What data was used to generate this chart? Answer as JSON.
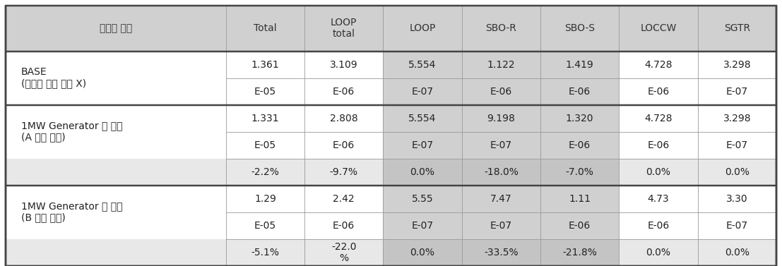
{
  "headers": [
    "이동형 설비",
    "Total",
    "LOOP\ntotal",
    "LOOP",
    "SBO-R",
    "SBO-S",
    "LOCCW",
    "SGTR"
  ],
  "col_widths_ratio": [
    2.8,
    1.0,
    1.0,
    1.0,
    1.0,
    1.0,
    1.0,
    1.0
  ],
  "shaded_col_indices": [
    3,
    4,
    5
  ],
  "header_bg": "#d0d0d0",
  "shaded_bg": "#d0d0d0",
  "pct_row_bg": "#e8e8e8",
  "pct_shaded_bg": "#c4c4c4",
  "outer_lw": 1.2,
  "inner_lw": 0.6,
  "outer_color": "#444444",
  "inner_color": "#999999",
  "font_size": 10,
  "header_font_size": 10,
  "rows": [
    {
      "label": "BASE\n(이동형 설비 포함 X)",
      "n_data_subrows": 2,
      "subrows": [
        [
          "1.361",
          "3.109",
          "5.554",
          "1.122",
          "1.419",
          "4.728",
          "3.298"
        ],
        [
          "E-05",
          "E-06",
          "E-07",
          "E-06",
          "E-06",
          "E-06",
          "E-07"
        ]
      ],
      "pct_row": null
    },
    {
      "label": "1MW Generator 만 고려\n(A 모선 연결)",
      "n_data_subrows": 2,
      "subrows": [
        [
          "1.331",
          "2.808",
          "5.554",
          "9.198",
          "1.320",
          "4.728",
          "3.298"
        ],
        [
          "E-05",
          "E-06",
          "E-07",
          "E-07",
          "E-06",
          "E-06",
          "E-07"
        ]
      ],
      "pct_row": [
        "-2.2%",
        "-9.7%",
        "0.0%",
        "-18.0%",
        "-7.0%",
        "0.0%",
        "0.0%"
      ]
    },
    {
      "label": "1MW Generator 만 고려\n(B 모선 연결)",
      "n_data_subrows": 2,
      "subrows": [
        [
          "1.29",
          "2.42",
          "5.55",
          "7.47",
          "1.11",
          "4.73",
          "3.30"
        ],
        [
          "E-05",
          "E-06",
          "E-07",
          "E-07",
          "E-06",
          "E-06",
          "E-07"
        ]
      ],
      "pct_row": [
        "-5.1%",
        "-22.0\n%",
        "0.0%",
        "-33.5%",
        "-21.8%",
        "0.0%",
        "0.0%"
      ]
    }
  ]
}
